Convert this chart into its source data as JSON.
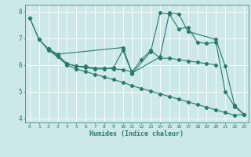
{
  "xlabel": "Humidex (Indice chaleur)",
  "bg_color": "#cce8e8",
  "grid_color": "#ffffff",
  "line_color": "#2a7a6a",
  "xlim": [
    -0.5,
    23.5
  ],
  "ylim": [
    3.85,
    8.25
  ],
  "xticks": [
    0,
    1,
    2,
    3,
    4,
    5,
    6,
    7,
    8,
    9,
    10,
    11,
    12,
    13,
    14,
    15,
    16,
    17,
    18,
    19,
    20,
    21,
    22,
    23
  ],
  "yticks": [
    4,
    5,
    6,
    7,
    8
  ],
  "lines": [
    {
      "x": [
        0,
        1,
        2,
        3,
        10,
        11,
        14,
        15,
        16,
        17,
        20,
        21,
        22,
        23
      ],
      "y": [
        7.75,
        6.95,
        6.6,
        6.4,
        6.65,
        5.7,
        6.3,
        7.95,
        7.9,
        7.25,
        6.95,
        5.95,
        4.5,
        4.15
      ]
    },
    {
      "x": [
        2,
        3,
        4,
        5,
        6,
        7,
        8,
        9,
        10,
        11,
        12,
        13,
        14,
        15,
        16,
        17,
        18,
        19,
        20
      ],
      "y": [
        6.6,
        6.35,
        6.05,
        5.95,
        5.95,
        5.88,
        5.88,
        5.85,
        5.82,
        5.75,
        6.2,
        6.55,
        6.25,
        6.25,
        6.2,
        6.15,
        6.1,
        6.05,
        6.0
      ]
    },
    {
      "x": [
        2,
        3,
        4,
        5,
        6,
        7,
        8,
        9,
        10,
        11,
        13,
        14,
        15,
        16,
        17,
        18,
        19,
        20,
        21,
        22,
        23
      ],
      "y": [
        6.6,
        6.35,
        6.05,
        5.95,
        5.9,
        5.85,
        5.85,
        5.9,
        6.55,
        5.68,
        6.5,
        7.95,
        7.9,
        7.35,
        7.4,
        6.85,
        6.8,
        6.85,
        5.0,
        4.45,
        4.15
      ]
    },
    {
      "x": [
        0,
        1,
        2,
        3,
        4,
        5,
        6,
        7,
        8,
        9,
        10,
        11,
        12,
        13,
        14,
        15,
        16,
        17,
        18,
        19,
        20,
        21,
        22,
        23
      ],
      "y": [
        7.75,
        6.95,
        6.55,
        6.3,
        6.0,
        5.85,
        5.75,
        5.65,
        5.55,
        5.45,
        5.35,
        5.22,
        5.12,
        5.02,
        4.92,
        4.82,
        4.72,
        4.62,
        4.52,
        4.42,
        4.32,
        4.22,
        4.12,
        4.15
      ]
    }
  ]
}
